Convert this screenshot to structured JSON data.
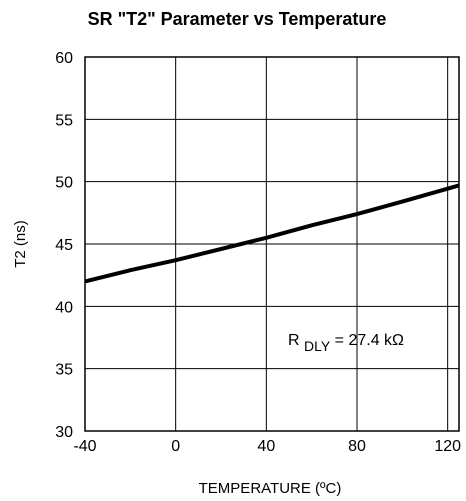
{
  "chart_data": {
    "type": "line",
    "title": "SR \"T2\" Parameter vs Temperature",
    "xlabel": "TEMPERATURE (ºC)",
    "ylabel": "T2 (ns)",
    "xlim": [
      -40,
      125
    ],
    "ylim": [
      30,
      60
    ],
    "xticks": [
      -40,
      0,
      40,
      80,
      120
    ],
    "yticks": [
      30,
      35,
      40,
      45,
      50,
      55,
      60
    ],
    "grid": true,
    "x": [
      -40,
      -20,
      0,
      20,
      40,
      60,
      80,
      100,
      125
    ],
    "series": [
      {
        "values": [
          42.0,
          42.9,
          43.7,
          44.6,
          45.5,
          46.5,
          47.4,
          48.4,
          49.7
        ]
      }
    ],
    "annotation": {
      "main": "R",
      "subscript": "DLY",
      "rest": " = 27.4 kΩ"
    }
  }
}
